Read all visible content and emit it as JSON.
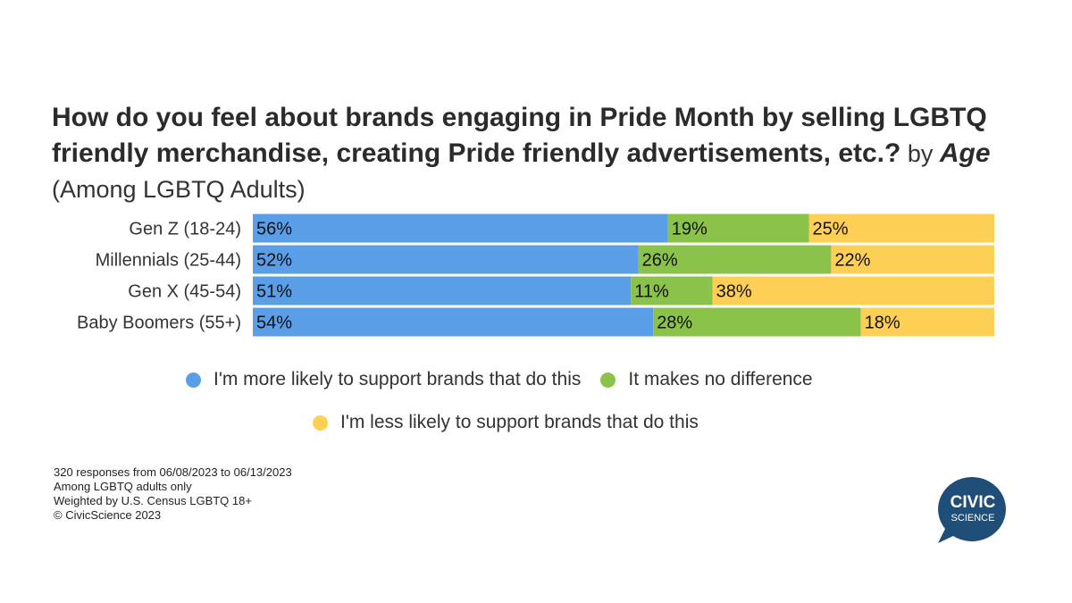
{
  "title": {
    "bold": "How do you feel about brands engaging in Pride Month by selling LGBTQ friendly merchandise, creating Pride friendly advertisements, etc.?",
    "by": " by ",
    "italic": "Age",
    "light": " (Among LGBTQ Adults)"
  },
  "chart_data": {
    "type": "bar",
    "orientation": "horizontal",
    "stacked": true,
    "categories": [
      "Gen Z (18-24)",
      "Millennials (25-44)",
      "Gen X (45-54)",
      "Baby Boomers (55+)"
    ],
    "series": [
      {
        "name": "I'm more likely to support brands that do this",
        "color": "#5b9ee8",
        "values": [
          56,
          52,
          51,
          54
        ]
      },
      {
        "name": "It makes no difference",
        "color": "#8bc34a",
        "values": [
          19,
          26,
          11,
          28
        ]
      },
      {
        "name": "I'm less likely to support brands that do this",
        "color": "#fdcf55",
        "values": [
          25,
          22,
          38,
          18
        ]
      }
    ],
    "value_suffix": "%",
    "xlim": [
      0,
      100
    ],
    "grid": false,
    "legend_position": "bottom"
  },
  "notes": [
    "320 responses from 06/08/2023 to 06/13/2023",
    "Among LGBTQ adults only",
    "Weighted by U.S. Census LGBTQ 18+",
    "© CivicScience 2023"
  ],
  "logo": {
    "line1": "CIVIC",
    "line2": "SCIENCE",
    "color": "#1f4e79"
  }
}
